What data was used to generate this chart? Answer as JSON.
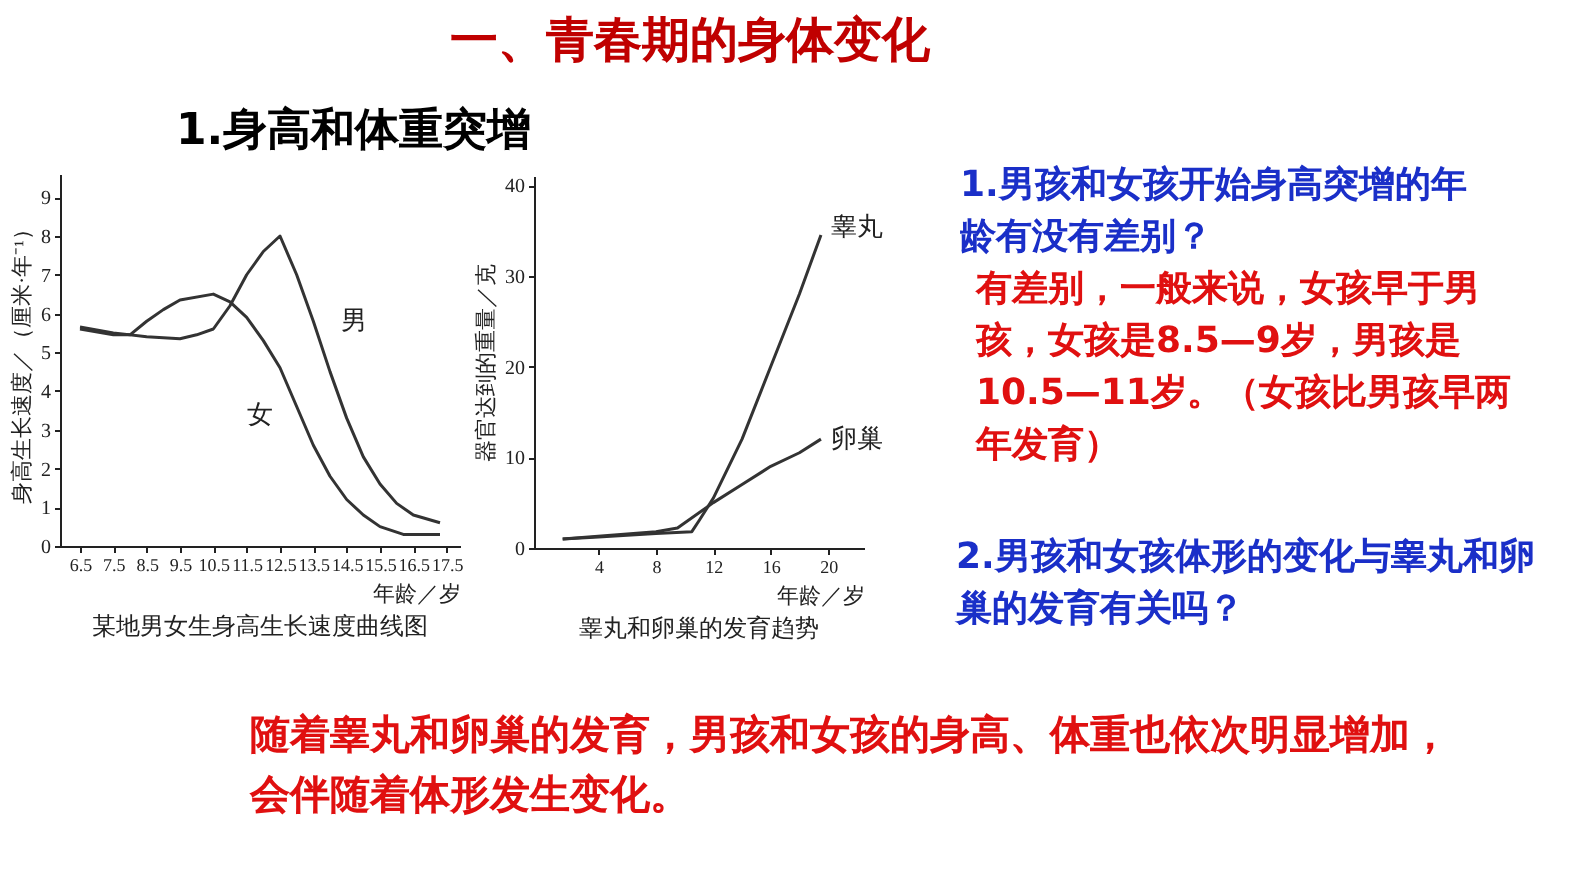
{
  "chart_data": [
    {
      "type": "other",
      "title": "一、青春期的身体变化",
      "subtitle": "1.身高和体重突增",
      "annotations": [
        "1.男孩和女孩开始身高突增的年龄有没有差别？",
        "有差别，一般来说，女孩早于男孩，女孩是8.5—9岁，男孩是10.5—11岁。（女孩比男孩早两年发育）",
        "2.男孩和女孩体形的变化与睾丸和卵巢的发育有关吗？",
        "随着睾丸和卵巢的发育，男孩和女孩的身高、体重也依次明显增加，会伴随着体形发生变化。"
      ]
    },
    {
      "type": "line",
      "title": "某地男女生身高生长速度曲线图",
      "xlabel": "年龄／岁",
      "ylabel": "身高生长速度／（厘米·年⁻¹）",
      "legend": false,
      "grid": false,
      "marker": "none",
      "line_style": "solid",
      "xlim": [
        5.9,
        17.9
      ],
      "xticks": [
        6.5,
        7.5,
        8.5,
        9.5,
        10.5,
        11.5,
        12.5,
        13.5,
        14.5,
        15.5,
        16.5,
        17.5
      ],
      "ylim": [
        0,
        9.6
      ],
      "yticks": [
        0,
        1,
        2,
        3,
        4,
        5,
        6,
        7,
        8,
        9
      ],
      "series": [
        {
          "name": "男",
          "color": "#333333",
          "x": [
            6.5,
            7.5,
            8.5,
            9.5,
            10,
            10.5,
            11,
            11.5,
            12,
            12.5,
            13,
            13.5,
            14,
            14.5,
            15,
            15.5,
            16,
            16.5,
            17.3
          ],
          "values": [
            5.65,
            5.5,
            5.4,
            5.35,
            5.45,
            5.6,
            6.2,
            7.0,
            7.6,
            8.0,
            7.0,
            5.8,
            4.5,
            3.3,
            2.3,
            1.6,
            1.1,
            0.8,
            0.6
          ]
        },
        {
          "name": "女",
          "color": "#333333",
          "x": [
            6.5,
            7.5,
            8,
            8.5,
            9,
            9.5,
            10.5,
            11,
            11.5,
            12,
            12.5,
            13,
            13.5,
            14,
            14.5,
            15,
            15.5,
            16.2,
            17.3
          ],
          "values": [
            5.6,
            5.45,
            5.45,
            5.8,
            6.1,
            6.35,
            6.5,
            6.3,
            5.9,
            5.3,
            4.6,
            3.6,
            2.6,
            1.8,
            1.2,
            0.8,
            0.5,
            0.3,
            0.3
          ]
        }
      ]
    },
    {
      "type": "line",
      "title": "睾丸和卵巢的发育趋势",
      "xlabel": "年龄／岁",
      "ylabel": "器官达到的重量／克",
      "legend": false,
      "grid": false,
      "marker": "none",
      "line_style": "solid",
      "xlim": [
        -0.5,
        22.5
      ],
      "xticks": [
        4,
        8,
        12,
        16,
        20
      ],
      "ylim": [
        0,
        41
      ],
      "yticks": [
        0,
        10,
        20,
        30,
        40
      ],
      "series": [
        {
          "name": "睾丸",
          "color": "#333333",
          "x": [
            1.5,
            4,
            8,
            10.5,
            11,
            12,
            14,
            16,
            18,
            19.5
          ],
          "values": [
            1.0,
            1.2,
            1.6,
            1.8,
            3,
            5.5,
            12,
            20,
            28,
            34.5
          ]
        },
        {
          "name": "卵巢",
          "color": "#333333",
          "x": [
            1.5,
            8,
            9.5,
            12,
            14,
            16,
            18,
            19.5
          ],
          "values": [
            1,
            1.8,
            2.2,
            5,
            7,
            9,
            10.5,
            12
          ]
        }
      ]
    }
  ]
}
